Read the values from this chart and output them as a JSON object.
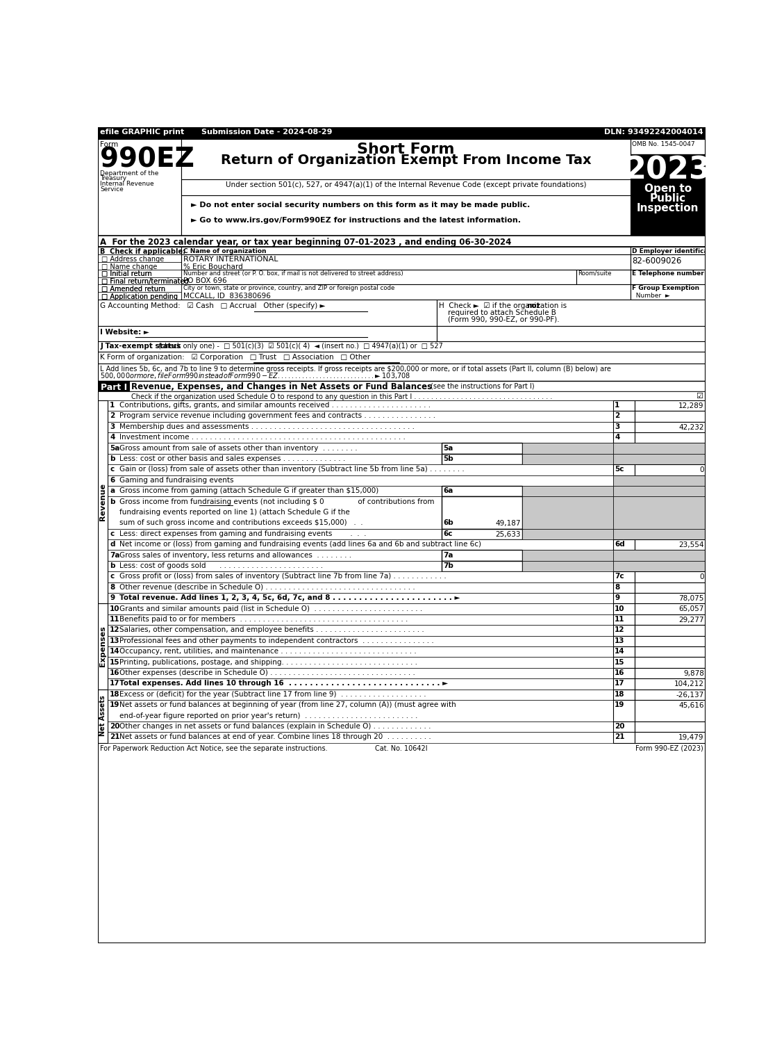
{
  "efile_header": "efile GRAPHIC print",
  "submission_date": "Submission Date - 2024-08-29",
  "dln": "DLN: 93492242004014",
  "form_label": "Form",
  "form_number": "990EZ",
  "title1": "Short Form",
  "title2": "Return of Organization Exempt From Income Tax",
  "subtitle": "Under section 501(c), 527, or 4947(a)(1) of the Internal Revenue Code (except private foundations)",
  "year": "2023",
  "omb": "OMB No. 1545-0047",
  "dept1": "Department of the",
  "dept2": "Treasury",
  "dept3": "Internal Revenue",
  "dept4": "Service",
  "bullet1": "► Do not enter social security numbers on this form as it may be made public.",
  "bullet2": "► Go to www.irs.gov/Form990EZ for instructions and the latest information.",
  "section_a": "A  For the 2023 calendar year, or tax year beginning 07-01-2023 , and ending 06-30-2024",
  "check_b1": "□ Address change",
  "check_b2": "□ Name change",
  "check_b3": "□ Initial return",
  "check_b4": "□ Final return/terminated",
  "check_b5": "□ Amended return",
  "check_b6": "□ Application pending",
  "label_c": "C Name of organization",
  "org_name": "ROTARY INTERNATIONAL",
  "org_contact": "% Eric Bouchard",
  "label_street": "Number and street (or P. O. box, if mail is not delivered to street address)",
  "label_room": "Room/suite",
  "org_street": "PO BOX 696",
  "label_city": "City or town, state or province, country, and ZIP or foreign postal code",
  "org_city": "MCCALL, ID  836380696",
  "ein": "82-6009026",
  "footer_left": "For Paperwork Reduction Act Notice, see the separate instructions.",
  "footer_cat": "Cat. No. 10642I",
  "footer_right": "Form 990-EZ (2023)"
}
